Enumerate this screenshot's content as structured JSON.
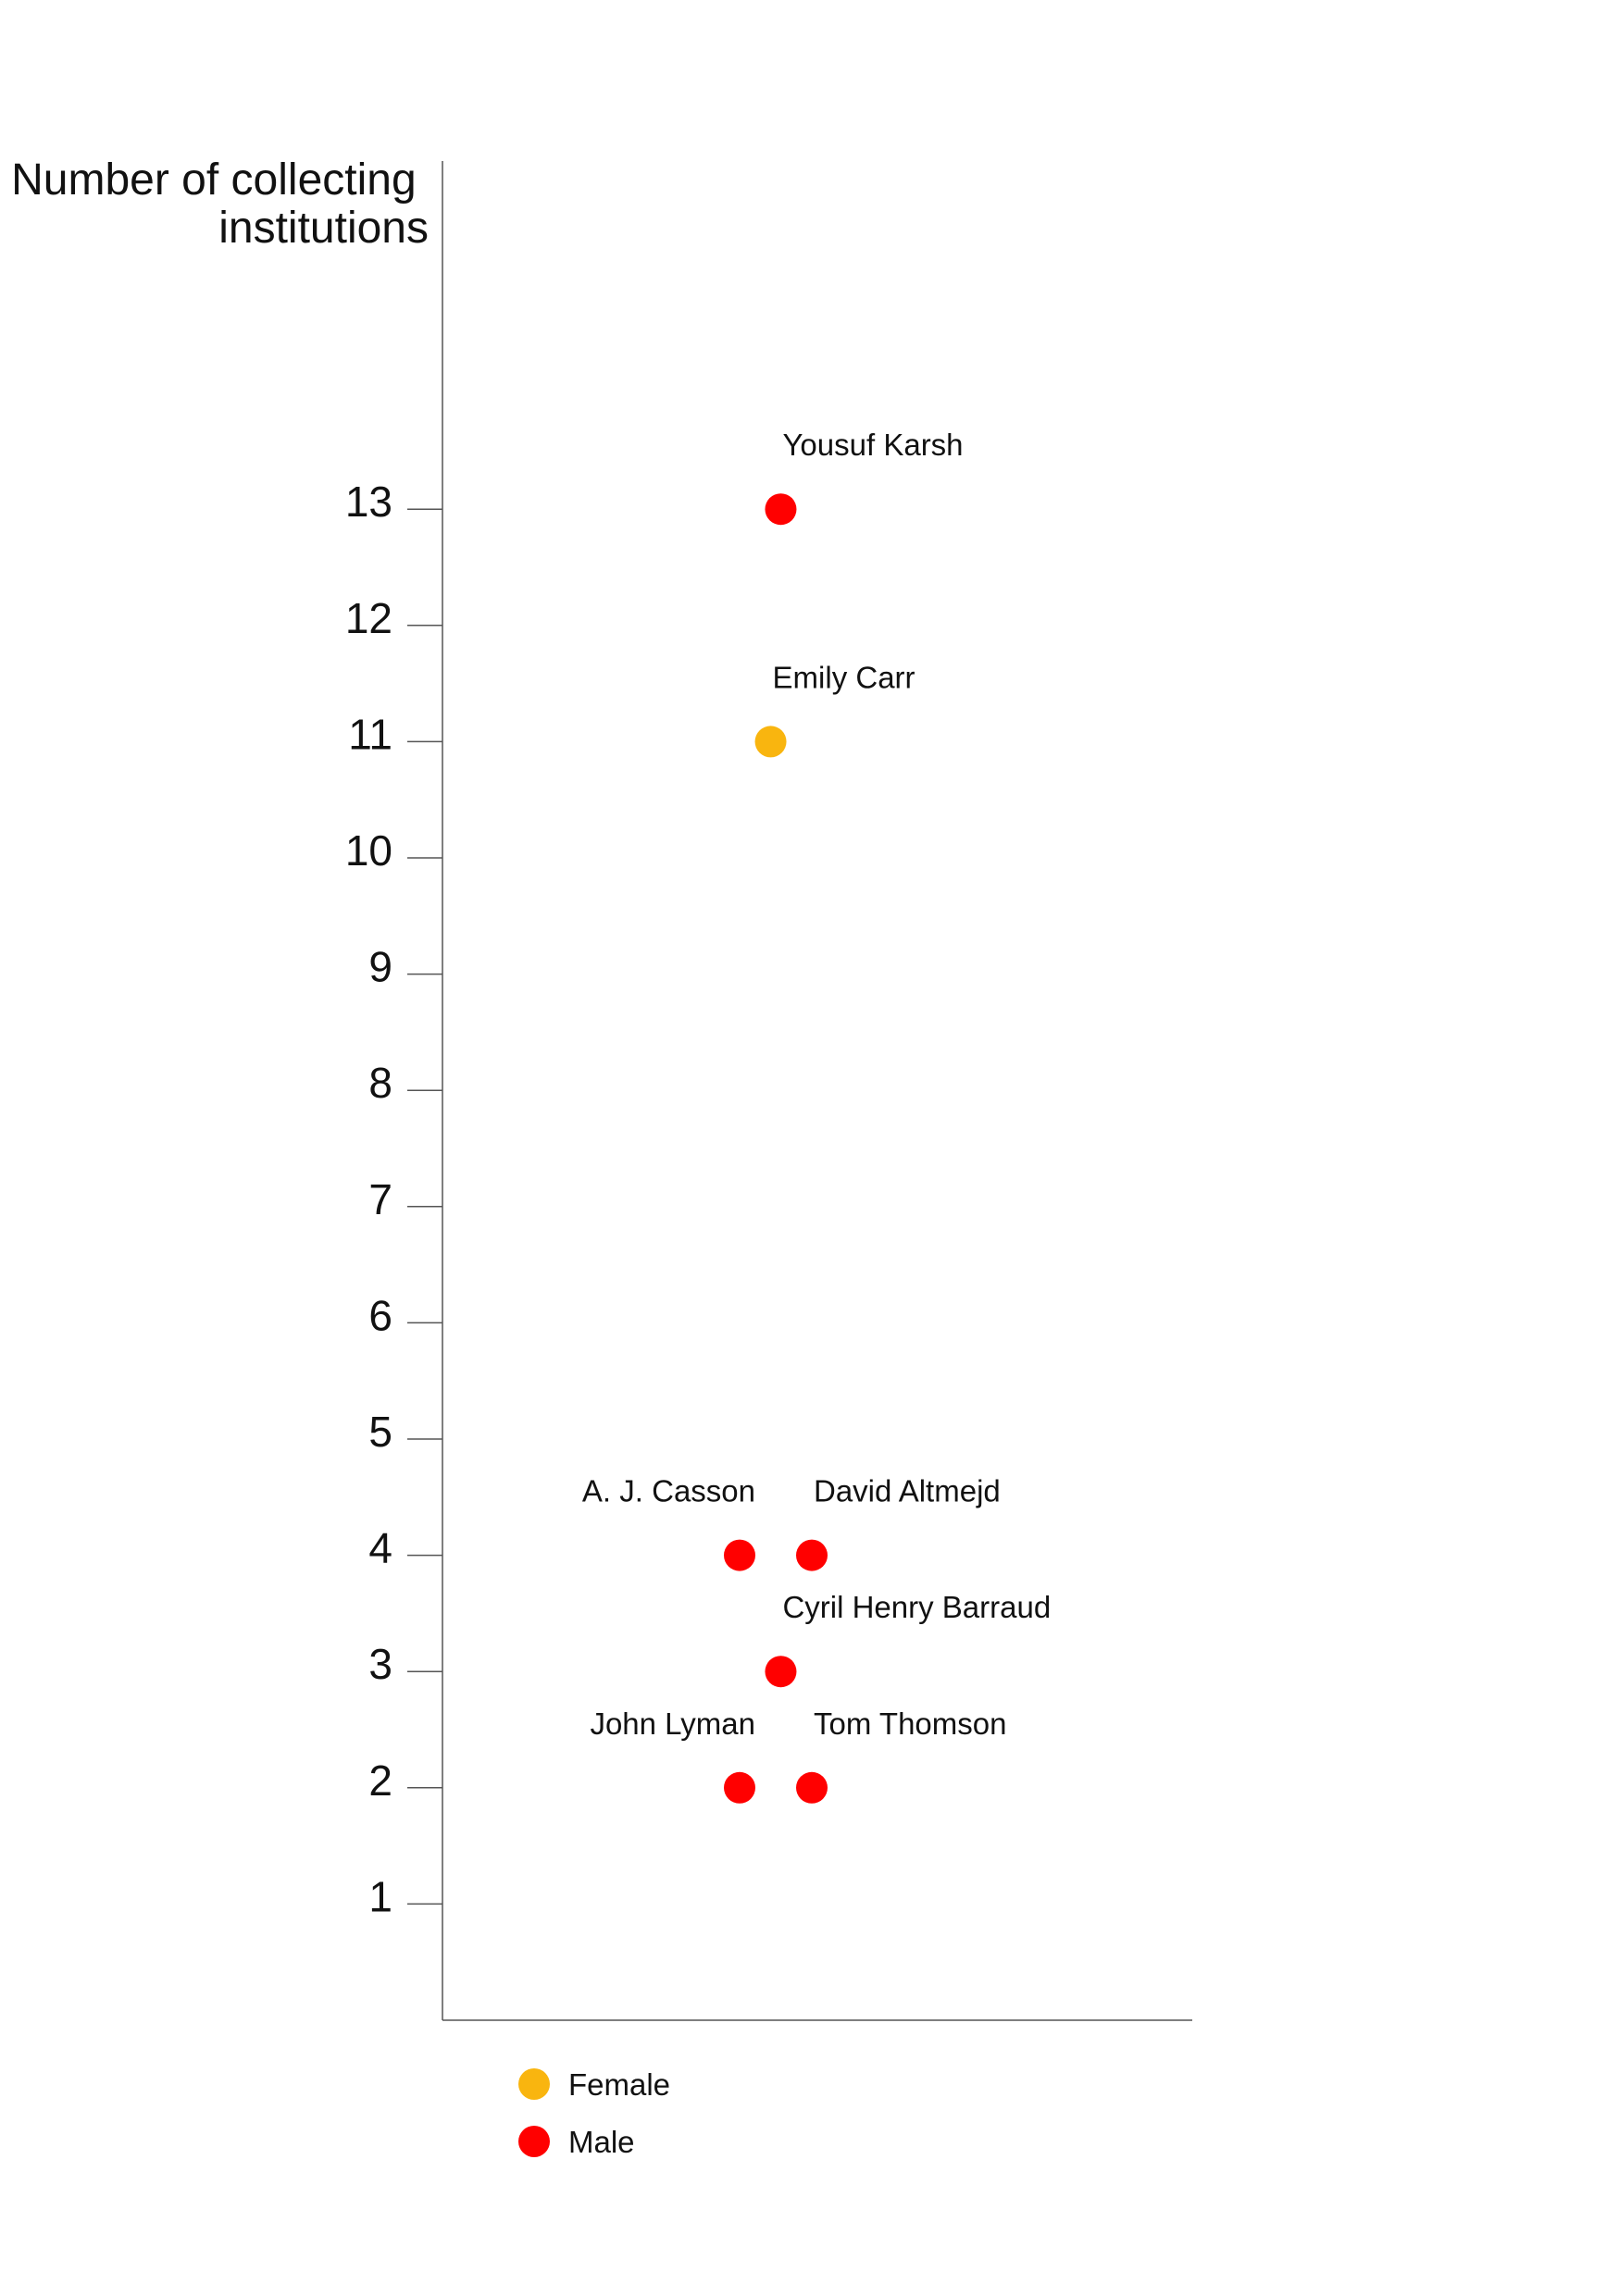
{
  "chart_data": {
    "type": "scatter",
    "ylabel": [
      "Number of collecting",
      "institutions"
    ],
    "xlabel": "",
    "ylim": [
      0,
      13
    ],
    "yticks": [
      1,
      2,
      3,
      4,
      5,
      6,
      7,
      8,
      9,
      10,
      11,
      12,
      13
    ],
    "x_axis_ticks": false,
    "grid": false,
    "points": [
      {
        "label": "Yousuf Karsh",
        "y": 13,
        "group": "Male"
      },
      {
        "label": "Emily Carr",
        "y": 11,
        "group": "Female"
      },
      {
        "label": "A. J. Casson",
        "y": 4,
        "group": "Male"
      },
      {
        "label": "David Altmejd",
        "y": 4,
        "group": "Male"
      },
      {
        "label": "Cyril Henry Barraud",
        "y": 3,
        "group": "Male"
      },
      {
        "label": "John Lyman",
        "y": 2,
        "group": "Male"
      },
      {
        "label": "Tom Thomson",
        "y": 2,
        "group": "Male"
      }
    ],
    "legend": {
      "placement": "bottom-left",
      "items": [
        {
          "label": "Female",
          "color": "#F9B50F"
        },
        {
          "label": "Male",
          "color": "#FF0000"
        }
      ]
    },
    "colors": {
      "Female": "#F9B50F",
      "Male": "#FF0000",
      "axis": "#555555"
    }
  }
}
